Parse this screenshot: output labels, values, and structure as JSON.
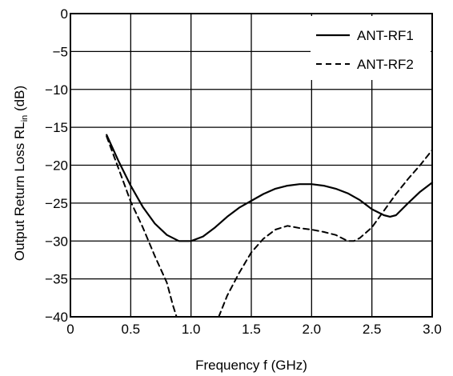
{
  "chart_data": {
    "type": "line",
    "title": "",
    "xlabel": "Frequency  f (GHz)",
    "ylabel_main": "Output Return Loss  RL",
    "ylabel_sub": "in",
    "ylabel_unit": " (dB)",
    "xlim": [
      0,
      3.0
    ],
    "ylim": [
      -40,
      0
    ],
    "x_ticks": [
      0,
      0.5,
      1.0,
      1.5,
      2.0,
      2.5,
      3.0
    ],
    "x_tick_labels": [
      "0",
      "0.5",
      "1.0",
      "1.5",
      "2.0",
      "2.5",
      "3.0"
    ],
    "y_ticks": [
      0,
      -5,
      -10,
      -15,
      -20,
      -25,
      -30,
      -35,
      -40
    ],
    "y_tick_labels": [
      "0",
      "−5",
      "−10",
      "−15",
      "−20",
      "−25",
      "−30",
      "−35",
      "−40"
    ],
    "grid": true,
    "legend_position": "top-right",
    "series": [
      {
        "name": "ANT-RF1",
        "style": "solid",
        "color": "#000000",
        "x": [
          0.3,
          0.4,
          0.5,
          0.6,
          0.7,
          0.8,
          0.9,
          1.0,
          1.1,
          1.2,
          1.3,
          1.4,
          1.5,
          1.6,
          1.7,
          1.8,
          1.9,
          2.0,
          2.1,
          2.2,
          2.3,
          2.4,
          2.5,
          2.6,
          2.65,
          2.7,
          2.8,
          2.9,
          3.0
        ],
        "y": [
          -16,
          -19.5,
          -22.7,
          -25.5,
          -27.7,
          -29.2,
          -30,
          -30,
          -29.4,
          -28.2,
          -26.8,
          -25.6,
          -24.7,
          -23.8,
          -23.1,
          -22.7,
          -22.5,
          -22.5,
          -22.7,
          -23.1,
          -23.7,
          -24.6,
          -25.8,
          -26.6,
          -26.8,
          -26.6,
          -25,
          -23.5,
          -22.3
        ]
      },
      {
        "name": "ANT-RF2",
        "style": "dashed",
        "color": "#000000",
        "x": [
          0.3,
          0.4,
          0.5,
          0.6,
          0.7,
          0.8,
          0.85,
          0.88,
          null,
          1.23,
          1.3,
          1.4,
          1.5,
          1.6,
          1.7,
          1.8,
          1.9,
          2.0,
          2.1,
          2.2,
          2.3,
          2.35,
          2.4,
          2.5,
          2.6,
          2.7,
          2.8,
          2.9,
          3.0
        ],
        "y": [
          -16.2,
          -20.5,
          -24.8,
          -28.2,
          -32,
          -35.5,
          -38.5,
          -40,
          null,
          -40,
          -37.2,
          -34.2,
          -31.5,
          -29.7,
          -28.5,
          -28,
          -28.3,
          -28.5,
          -28.8,
          -29.2,
          -30,
          -30,
          -29.6,
          -28.2,
          -26,
          -23.8,
          -21.8,
          -20,
          -18
        ]
      }
    ]
  }
}
